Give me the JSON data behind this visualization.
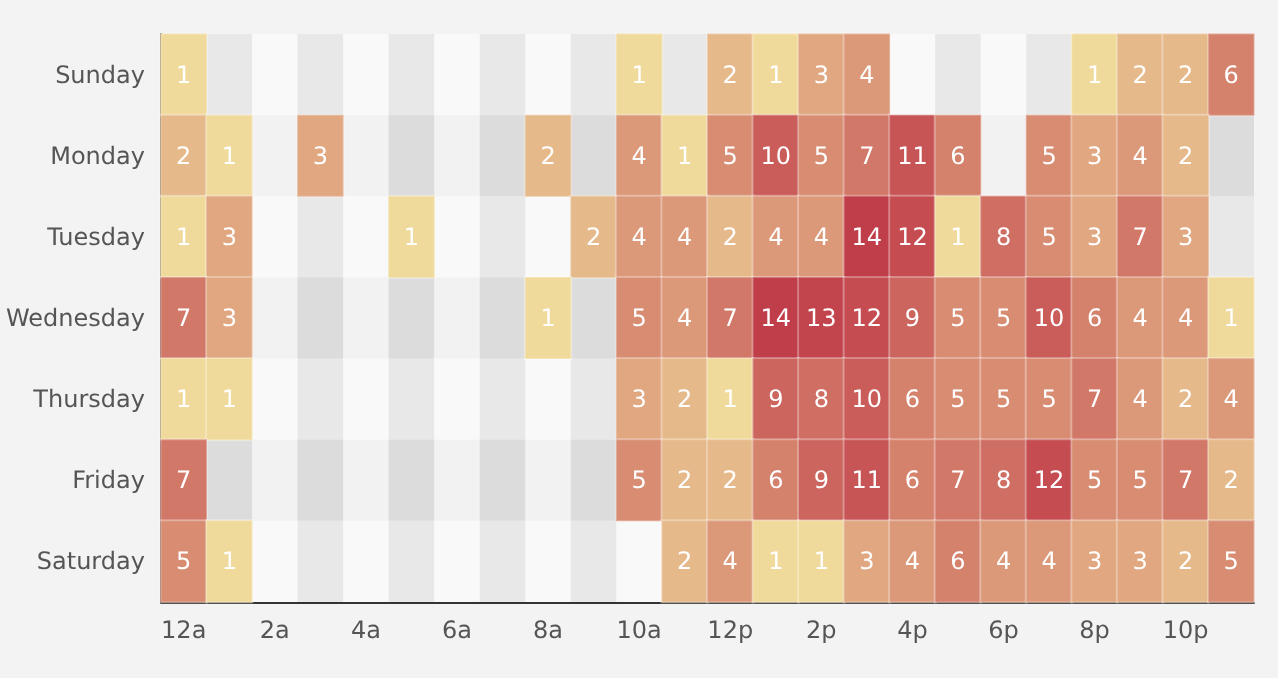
{
  "chart_data": {
    "type": "heatmap",
    "categories": [
      "12a",
      null,
      "2a",
      null,
      "4a",
      null,
      "6a",
      null,
      "8a",
      null,
      "10a",
      null,
      "12p",
      null,
      "2p",
      null,
      "4p",
      null,
      "6p",
      null,
      "8p",
      null,
      "10p",
      null
    ],
    "y_categories": [
      "Sunday",
      "Monday",
      "Tuesday",
      "Wednesday",
      "Thursday",
      "Friday",
      "Saturday"
    ],
    "cells": [
      [
        1,
        null,
        null,
        null,
        null,
        null,
        null,
        null,
        null,
        null,
        1,
        null,
        2,
        1,
        3,
        4,
        null,
        null,
        null,
        null,
        1,
        2,
        2,
        6
      ],
      [
        2,
        1,
        null,
        3,
        null,
        null,
        null,
        null,
        2,
        null,
        4,
        1,
        5,
        10,
        5,
        7,
        11,
        6,
        null,
        5,
        3,
        4,
        2,
        null
      ],
      [
        1,
        3,
        null,
        null,
        null,
        1,
        null,
        null,
        null,
        2,
        4,
        4,
        2,
        4,
        4,
        14,
        12,
        1,
        8,
        5,
        3,
        7,
        3,
        null
      ],
      [
        7,
        3,
        null,
        null,
        null,
        null,
        null,
        null,
        1,
        null,
        5,
        4,
        7,
        14,
        13,
        12,
        9,
        5,
        5,
        10,
        6,
        4,
        4,
        1
      ],
      [
        1,
        1,
        null,
        null,
        null,
        null,
        null,
        null,
        null,
        null,
        3,
        2,
        1,
        9,
        8,
        10,
        6,
        5,
        5,
        5,
        7,
        4,
        2,
        4
      ],
      [
        7,
        null,
        null,
        null,
        null,
        null,
        null,
        null,
        null,
        null,
        5,
        2,
        2,
        6,
        9,
        11,
        6,
        7,
        8,
        12,
        5,
        5,
        7,
        2
      ],
      [
        5,
        1,
        null,
        null,
        null,
        null,
        null,
        null,
        null,
        null,
        null,
        2,
        4,
        1,
        1,
        3,
        4,
        6,
        4,
        4,
        3,
        3,
        2,
        5
      ]
    ],
    "data_labels": true
  }
}
